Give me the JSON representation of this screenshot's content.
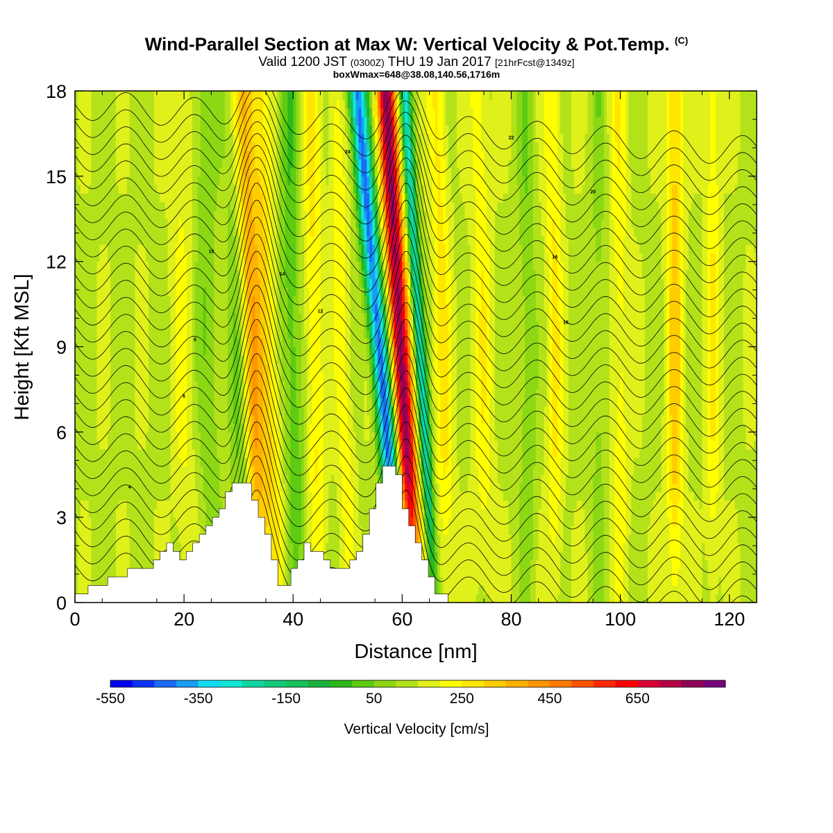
{
  "title": {
    "main": "Wind-Parallel Section at Max W: Vertical Velocity & Pot.Temp.",
    "copyright": "(C)",
    "valid_prefix": "Valid 1200 JST",
    "valid_utc": "(0300Z)",
    "valid_date": "THU 19 Jan 2017",
    "forecast": "[21hrFcst@1349z]",
    "box_info": "boxWmax=648@38.08,140.56,1716m"
  },
  "chart_data": {
    "type": "heatmap",
    "xlabel": "Distance [nm]",
    "ylabel": "Height [Kft MSL]",
    "xlim": [
      0,
      125
    ],
    "ylim": [
      0,
      18
    ],
    "x_ticks": [
      0,
      20,
      40,
      60,
      80,
      100,
      120
    ],
    "y_ticks": [
      0,
      3,
      6,
      9,
      12,
      15,
      18
    ],
    "colorbar": {
      "title": "Vertical Velocity [cm/s]",
      "levels": [
        -650,
        -600,
        -550,
        -500,
        -450,
        -400,
        -350,
        -300,
        -250,
        -200,
        -150,
        -100,
        -50,
        0,
        50,
        100,
        150,
        200,
        250,
        300,
        350,
        400,
        450,
        500,
        550,
        600,
        650,
        700,
        750
      ],
      "tick_labels": [
        -550,
        -350,
        -150,
        50,
        250,
        450,
        650
      ],
      "colors": [
        "#0000ee",
        "#0a32f5",
        "#1a6bf5",
        "#1a9df5",
        "#11dbf2",
        "#0fe8d4",
        "#10d6a0",
        "#12c97a",
        "#14c15a",
        "#18b238",
        "#2db81a",
        "#5dcc12",
        "#8cd814",
        "#b3e21a",
        "#e0f01a",
        "#ffff00",
        "#ffe600",
        "#ffcc00",
        "#ffb000",
        "#ff9600",
        "#ff7a00",
        "#ff5200",
        "#ff2800",
        "#ff0000",
        "#dd0033",
        "#b80044",
        "#900055",
        "#76007a"
      ]
    },
    "terrain_profile": [
      [
        0,
        0.3
      ],
      [
        4.5,
        0.6
      ],
      [
        10,
        1.2
      ],
      [
        13,
        1.0
      ],
      [
        15,
        1.8
      ],
      [
        17,
        2.1
      ],
      [
        19,
        1.5
      ],
      [
        21,
        2.0
      ],
      [
        24,
        2.6
      ],
      [
        27,
        3.6
      ],
      [
        29,
        4.2
      ],
      [
        31,
        4.4
      ],
      [
        33,
        3.4
      ],
      [
        35,
        2.4
      ],
      [
        36.5,
        1.2
      ],
      [
        37.5,
        0.4
      ],
      [
        40,
        1.3
      ],
      [
        42,
        2.0
      ],
      [
        45,
        1.7
      ],
      [
        47,
        1.2
      ],
      [
        49,
        1.0
      ],
      [
        51,
        1.6
      ],
      [
        53,
        2.6
      ],
      [
        55,
        4.0
      ],
      [
        57,
        5.0
      ],
      [
        58.5,
        4.6
      ],
      [
        60,
        3.4
      ],
      [
        62,
        2.2
      ],
      [
        64,
        1.2
      ],
      [
        66,
        0.3
      ],
      [
        70,
        0
      ],
      [
        125,
        0
      ]
    ],
    "w_updraft_max": 648,
    "contour_labels": [
      "4",
      "6",
      "8",
      "10",
      "12",
      "14",
      "16",
      "18",
      "20",
      "22",
      "24"
    ]
  }
}
